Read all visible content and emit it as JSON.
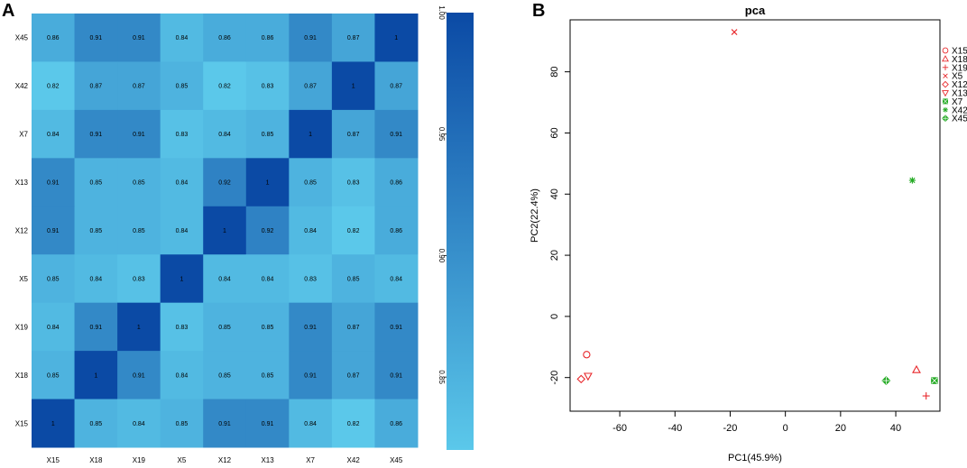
{
  "panels": {
    "a_letter": "A",
    "b_letter": "B"
  },
  "colors": {
    "low": "#5bc8ea",
    "high": "#0b4aa5",
    "pca_red": "#e8282c",
    "pca_green": "#22aa22"
  },
  "chart_data": [
    {
      "type": "heatmap",
      "title": "",
      "row_labels_top_to_bottom": [
        "X45",
        "X42",
        "X7",
        "X13",
        "X12",
        "X5",
        "X19",
        "X18",
        "X15"
      ],
      "col_labels": [
        "X15",
        "X18",
        "X19",
        "X5",
        "X12",
        "X13",
        "X7",
        "X42",
        "X45"
      ],
      "values": [
        [
          0.86,
          0.91,
          0.91,
          0.84,
          0.86,
          0.86,
          0.91,
          0.87,
          1
        ],
        [
          0.82,
          0.87,
          0.87,
          0.85,
          0.82,
          0.83,
          0.87,
          1,
          0.87
        ],
        [
          0.84,
          0.91,
          0.91,
          0.83,
          0.84,
          0.85,
          1,
          0.87,
          0.91
        ],
        [
          0.91,
          0.85,
          0.85,
          0.84,
          0.92,
          1,
          0.85,
          0.83,
          0.86
        ],
        [
          0.91,
          0.85,
          0.85,
          0.84,
          1,
          0.92,
          0.84,
          0.82,
          0.86
        ],
        [
          0.85,
          0.84,
          0.83,
          1,
          0.84,
          0.84,
          0.83,
          0.85,
          0.84
        ],
        [
          0.84,
          0.91,
          1,
          0.83,
          0.85,
          0.85,
          0.91,
          0.87,
          0.91
        ],
        [
          0.85,
          1,
          0.91,
          0.84,
          0.85,
          0.85,
          0.91,
          0.87,
          0.91
        ],
        [
          1,
          0.85,
          0.84,
          0.85,
          0.91,
          0.91,
          0.84,
          0.82,
          0.86
        ]
      ],
      "value_labels": [
        [
          "0.86",
          "0.91",
          "0.91",
          "0.84",
          "0.86",
          "0.86",
          "0.91",
          "0.87",
          "1"
        ],
        [
          "0.82",
          "0.87",
          "0.87",
          "0.85",
          "0.82",
          "0.83",
          "0.87",
          "1",
          "0.87"
        ],
        [
          "0.84",
          "0.91",
          "0.91",
          "0.83",
          "0.84",
          "0.85",
          "1",
          "0.87",
          "0.91"
        ],
        [
          "0.91",
          "0.85",
          "0.85",
          "0.84",
          "0.92",
          "1",
          "0.85",
          "0.83",
          "0.86"
        ],
        [
          "0.91",
          "0.85",
          "0.85",
          "0.84",
          "1",
          "0.92",
          "0.84",
          "0.82",
          "0.86"
        ],
        [
          "0.85",
          "0.84",
          "0.83",
          "1",
          "0.84",
          "0.84",
          "0.83",
          "0.85",
          "0.84"
        ],
        [
          "0.84",
          "0.91",
          "1",
          "0.83",
          "0.85",
          "0.85",
          "0.91",
          "0.87",
          "0.91"
        ],
        [
          "0.85",
          "1",
          "0.91",
          "0.84",
          "0.85",
          "0.85",
          "0.91",
          "0.87",
          "0.91"
        ],
        [
          "1",
          "0.85",
          "0.84",
          "0.85",
          "0.91",
          "0.91",
          "0.84",
          "0.82",
          "0.86"
        ]
      ],
      "colorbar": {
        "min": 0.82,
        "max": 1.0,
        "ticks": [
          1.0,
          0.95,
          0.9,
          0.85
        ],
        "tick_labels": [
          "1.00",
          "0.95",
          "0.90",
          "0.85"
        ]
      }
    },
    {
      "type": "scatter",
      "title": "pca",
      "xlabel": "PC1(45.9%)",
      "ylabel": "PC2(22.4%)",
      "xlim": [
        -78,
        56
      ],
      "ylim": [
        -31,
        97
      ],
      "xticks": [
        -60,
        -40,
        -20,
        0,
        20,
        40
      ],
      "xtick_labels": [
        "-60",
        "-40",
        "-20",
        "0",
        "20",
        "40"
      ],
      "yticks": [
        -20,
        0,
        20,
        40,
        60,
        80
      ],
      "ytick_labels": [
        "-20",
        "0",
        "20",
        "40",
        "60",
        "80"
      ],
      "legend_position": "top-right",
      "series": [
        {
          "name": "X15",
          "marker": "circle",
          "color": "red",
          "x": -72,
          "y": -12.5
        },
        {
          "name": "X18",
          "marker": "triangle-up",
          "color": "red",
          "x": 47.5,
          "y": -17.5
        },
        {
          "name": "X19",
          "marker": "plus",
          "color": "red",
          "x": 51,
          "y": -26
        },
        {
          "name": "X5",
          "marker": "cross",
          "color": "red",
          "x": -18.5,
          "y": 93
        },
        {
          "name": "X12",
          "marker": "diamond",
          "color": "red",
          "x": -74,
          "y": -20.5
        },
        {
          "name": "X13",
          "marker": "triangle-down",
          "color": "red",
          "x": -71.5,
          "y": -19.5
        },
        {
          "name": "X7",
          "marker": "square-cross",
          "color": "green",
          "x": 54,
          "y": -21
        },
        {
          "name": "X42",
          "marker": "asterisk",
          "color": "green",
          "x": 46,
          "y": 44.5
        },
        {
          "name": "X45",
          "marker": "diamond-plus",
          "color": "green",
          "x": 36.5,
          "y": -21
        }
      ]
    }
  ]
}
